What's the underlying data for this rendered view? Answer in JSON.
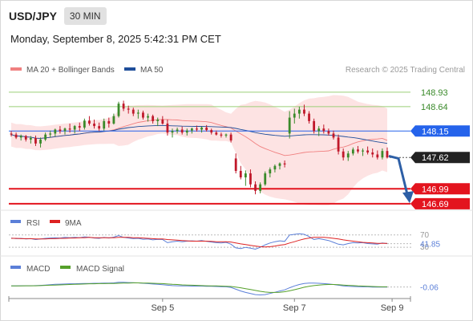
{
  "header": {
    "symbol": "USD/JPY",
    "timeframe_label": "30 MIN",
    "datetime": "Monday, September 8, 2025 5:42:31 PM CET"
  },
  "colors": {
    "price_up": "#3a8a2a",
    "price_down": "#c0182a",
    "ma20": "#f08080",
    "bollinger_fill": "#fde0e0",
    "ma50": "#1f4e9a",
    "resistance": "#9bcf77",
    "support": "#e3141e",
    "pivot": "#2563eb",
    "last_price_tag": "#222222",
    "forecast_arrow": "#2d5fa6",
    "rsi": "#5b7fd8",
    "rsi_ma": "#dd2222",
    "macd": "#5b7fd8",
    "macd_signal": "#55a02a"
  },
  "chart_data": [
    {
      "type": "candlestick",
      "name": "price",
      "legend": [
        {
          "label": "MA 20 + Bollinger Bands",
          "color": "#f08080"
        },
        {
          "label": "MA 50",
          "color": "#1f4e9a"
        }
      ],
      "watermark": "Research © 2025 Trading Central",
      "ylim": [
        146.56,
        149.17
      ],
      "x_ticks": [
        {
          "label": "Sep 5",
          "index": 31
        },
        {
          "label": "Sep 7",
          "index": 58
        },
        {
          "label": "Sep 9",
          "index": 78
        }
      ],
      "levels": [
        {
          "label": "148.93",
          "value": 148.93,
          "kind": "resistance"
        },
        {
          "label": "148.64",
          "value": 148.64,
          "kind": "resistance"
        },
        {
          "label": "148.15",
          "value": 148.15,
          "kind": "pivot"
        },
        {
          "label": "146.99",
          "value": 146.99,
          "kind": "support"
        },
        {
          "label": "146.69",
          "value": 146.69,
          "kind": "support"
        }
      ],
      "last_price": {
        "label": "147.62",
        "value": 147.62
      },
      "forecast": {
        "from": 147.6,
        "to": 146.72
      },
      "ohlc": [
        [
          148.1,
          148.15,
          148.04,
          148.08
        ],
        [
          148.08,
          148.12,
          147.99,
          148.02
        ],
        [
          148.02,
          148.08,
          147.96,
          148.05
        ],
        [
          148.05,
          148.07,
          147.94,
          147.98
        ],
        [
          147.98,
          148.05,
          147.9,
          148.01
        ],
        [
          148.01,
          148.06,
          147.85,
          147.9
        ],
        [
          147.9,
          148.02,
          147.82,
          147.98
        ],
        [
          147.98,
          148.12,
          147.95,
          148.08
        ],
        [
          148.08,
          148.16,
          148.02,
          148.1
        ],
        [
          148.1,
          148.2,
          148.04,
          148.18
        ],
        [
          148.18,
          148.25,
          148.1,
          148.15
        ],
        [
          148.15,
          148.22,
          148.08,
          148.2
        ],
        [
          148.2,
          148.3,
          148.12,
          148.18
        ],
        [
          148.18,
          148.27,
          148.1,
          148.25
        ],
        [
          148.25,
          148.32,
          148.15,
          148.22
        ],
        [
          148.22,
          148.4,
          148.18,
          148.36
        ],
        [
          148.36,
          148.45,
          148.26,
          148.3
        ],
        [
          148.3,
          148.38,
          148.2,
          148.25
        ],
        [
          148.25,
          148.32,
          148.15,
          148.2
        ],
        [
          148.2,
          148.4,
          148.16,
          148.35
        ],
        [
          148.35,
          148.42,
          148.22,
          148.3
        ],
        [
          148.3,
          148.5,
          148.28,
          148.45
        ],
        [
          148.45,
          148.74,
          148.42,
          148.7
        ],
        [
          148.7,
          148.76,
          148.55,
          148.6
        ],
        [
          148.6,
          148.66,
          148.5,
          148.58
        ],
        [
          148.58,
          148.62,
          148.45,
          148.5
        ],
        [
          148.5,
          148.58,
          148.4,
          148.52
        ],
        [
          148.52,
          148.56,
          148.38,
          148.42
        ],
        [
          148.42,
          148.5,
          148.34,
          148.45
        ],
        [
          148.45,
          148.48,
          148.3,
          148.35
        ],
        [
          148.35,
          148.42,
          148.25,
          148.38
        ],
        [
          148.38,
          148.45,
          148.28,
          148.3
        ],
        [
          148.3,
          148.38,
          148.06,
          148.12
        ],
        [
          148.12,
          148.2,
          148.02,
          148.15
        ],
        [
          148.15,
          148.22,
          148.1,
          148.18
        ],
        [
          148.18,
          148.24,
          148.08,
          148.12
        ],
        [
          148.12,
          148.2,
          148.06,
          148.16
        ],
        [
          148.16,
          148.22,
          148.1,
          148.2
        ],
        [
          148.2,
          148.26,
          148.14,
          148.18
        ],
        [
          148.18,
          148.24,
          148.12,
          148.22
        ],
        [
          148.22,
          148.27,
          148.14,
          148.17
        ],
        [
          148.17,
          148.2,
          148.08,
          148.12
        ],
        [
          148.12,
          148.16,
          148.06,
          148.08
        ],
        [
          148.08,
          148.12,
          148.02,
          148.06
        ],
        [
          148.06,
          148.1,
          148.02,
          148.08
        ],
        [
          148.08,
          148.12,
          147.92,
          147.96
        ],
        [
          147.6,
          147.7,
          147.3,
          147.35
        ],
        [
          147.35,
          147.45,
          147.18,
          147.22
        ],
        [
          147.22,
          147.36,
          147.05,
          147.3
        ],
        [
          147.3,
          147.38,
          147.02,
          147.08
        ],
        [
          147.08,
          147.14,
          146.88,
          146.95
        ],
        [
          146.95,
          147.12,
          146.9,
          147.08
        ],
        [
          147.08,
          147.34,
          147.05,
          147.3
        ],
        [
          147.3,
          147.42,
          147.22,
          147.38
        ],
        [
          147.38,
          147.48,
          147.32,
          147.45
        ],
        [
          147.45,
          147.52,
          147.38,
          147.5
        ],
        [
          147.5,
          147.56,
          147.42,
          147.48
        ],
        [
          148.1,
          148.55,
          148.0,
          148.42
        ],
        [
          148.42,
          148.6,
          148.3,
          148.5
        ],
        [
          148.5,
          148.64,
          148.4,
          148.58
        ],
        [
          148.58,
          148.68,
          148.45,
          148.5
        ],
        [
          148.5,
          148.55,
          148.3,
          148.35
        ],
        [
          148.35,
          148.4,
          148.1,
          148.15
        ],
        [
          148.15,
          148.25,
          148.05,
          148.2
        ],
        [
          148.2,
          148.28,
          148.1,
          148.15
        ],
        [
          148.15,
          148.2,
          148.06,
          148.1
        ],
        [
          148.1,
          148.16,
          147.98,
          148.02
        ],
        [
          148.02,
          148.08,
          147.68,
          147.74
        ],
        [
          147.74,
          147.8,
          147.56,
          147.62
        ],
        [
          147.62,
          147.75,
          147.55,
          147.7
        ],
        [
          147.7,
          147.82,
          147.66,
          147.78
        ],
        [
          147.78,
          147.85,
          147.7,
          147.74
        ],
        [
          147.74,
          147.8,
          147.65,
          147.76
        ],
        [
          147.76,
          147.84,
          147.68,
          147.72
        ],
        [
          147.72,
          147.8,
          147.62,
          147.68
        ],
        [
          147.68,
          147.76,
          147.58,
          147.62
        ],
        [
          147.62,
          147.8,
          147.58,
          147.75
        ],
        [
          147.75,
          147.82,
          147.6,
          147.62
        ]
      ]
    },
    {
      "type": "line",
      "name": "rsi",
      "legend": [
        {
          "label": "RSI",
          "color": "#5b7fd8"
        },
        {
          "label": "9MA",
          "color": "#dd2222"
        }
      ],
      "ylim": [
        20,
        85
      ],
      "reference_levels": [
        {
          "label": "70",
          "value": 70
        },
        {
          "label": "30",
          "value": 30
        }
      ],
      "last_value_label": "41.85",
      "series": [
        {
          "name": "RSI",
          "values": [
            60,
            58,
            59,
            57,
            58,
            55,
            57,
            59,
            60,
            61,
            60,
            62,
            61,
            62,
            61,
            64,
            62,
            60,
            59,
            62,
            60,
            63,
            68,
            62,
            60,
            58,
            59,
            56,
            57,
            54,
            56,
            55,
            45,
            48,
            50,
            48,
            50,
            51,
            50,
            52,
            49,
            47,
            45,
            44,
            46,
            40,
            28,
            26,
            30,
            27,
            24,
            30,
            38,
            44,
            48,
            51,
            49,
            70,
            72,
            74,
            72,
            65,
            55,
            58,
            55,
            52,
            46,
            40,
            38,
            42,
            45,
            44,
            45,
            42,
            41,
            40,
            44,
            41.85
          ]
        },
        {
          "name": "9MA",
          "values": [
            59,
            59,
            58,
            58,
            58,
            57,
            57,
            57,
            58,
            58,
            59,
            59,
            60,
            60,
            61,
            61,
            62,
            61,
            61,
            61,
            61,
            61,
            62,
            62,
            62,
            61,
            61,
            60,
            59,
            58,
            57,
            57,
            55,
            54,
            53,
            52,
            51,
            50,
            50,
            50,
            50,
            49,
            48,
            48,
            48,
            47,
            44,
            41,
            39,
            36,
            34,
            32,
            31,
            32,
            34,
            37,
            39,
            44,
            48,
            53,
            57,
            60,
            62,
            62,
            62,
            61,
            59,
            57,
            54,
            52,
            50,
            48,
            46,
            45,
            44,
            43,
            43,
            42.5
          ]
        }
      ]
    },
    {
      "type": "line",
      "name": "macd",
      "legend": [
        {
          "label": "MACD",
          "color": "#5b7fd8"
        },
        {
          "label": "MACD Signal",
          "color": "#55a02a"
        }
      ],
      "ylim": [
        -0.7,
        0.55
      ],
      "last_value_label": "-0.06",
      "series": [
        {
          "name": "MACD",
          "values": [
            0.0,
            0.0,
            0.01,
            0.01,
            0.01,
            0.02,
            0.03,
            0.05,
            0.07,
            0.09,
            0.1,
            0.11,
            0.12,
            0.12,
            0.13,
            0.14,
            0.14,
            0.15,
            0.15,
            0.16,
            0.16,
            0.17,
            0.2,
            0.2,
            0.19,
            0.18,
            0.17,
            0.15,
            0.13,
            0.11,
            0.09,
            0.07,
            0.04,
            0.02,
            0.01,
            0.0,
            0.0,
            -0.01,
            -0.01,
            -0.01,
            -0.02,
            -0.02,
            -0.03,
            -0.04,
            -0.05,
            -0.08,
            -0.18,
            -0.28,
            -0.36,
            -0.42,
            -0.48,
            -0.5,
            -0.48,
            -0.42,
            -0.35,
            -0.28,
            -0.22,
            -0.1,
            0.0,
            0.08,
            0.14,
            0.16,
            0.16,
            0.15,
            0.13,
            0.11,
            0.08,
            0.04,
            0.0,
            -0.02,
            -0.03,
            -0.04,
            -0.05,
            -0.05,
            -0.06,
            -0.06,
            -0.06,
            -0.06
          ]
        },
        {
          "name": "MACD Signal",
          "values": [
            0.0,
            0.0,
            0.0,
            0.01,
            0.01,
            0.01,
            0.02,
            0.03,
            0.04,
            0.05,
            0.06,
            0.07,
            0.08,
            0.09,
            0.1,
            0.11,
            0.12,
            0.12,
            0.13,
            0.13,
            0.14,
            0.14,
            0.15,
            0.16,
            0.16,
            0.17,
            0.17,
            0.16,
            0.16,
            0.15,
            0.14,
            0.13,
            0.11,
            0.09,
            0.08,
            0.06,
            0.05,
            0.04,
            0.03,
            0.02,
            0.01,
            0.0,
            0.0,
            -0.01,
            -0.02,
            -0.03,
            -0.06,
            -0.1,
            -0.15,
            -0.2,
            -0.25,
            -0.3,
            -0.34,
            -0.36,
            -0.36,
            -0.35,
            -0.32,
            -0.27,
            -0.21,
            -0.14,
            -0.07,
            -0.02,
            0.02,
            0.05,
            0.07,
            0.08,
            0.08,
            0.07,
            0.05,
            0.03,
            0.02,
            0.0,
            -0.01,
            -0.02,
            -0.03,
            -0.04,
            -0.05,
            -0.05
          ]
        }
      ]
    }
  ]
}
